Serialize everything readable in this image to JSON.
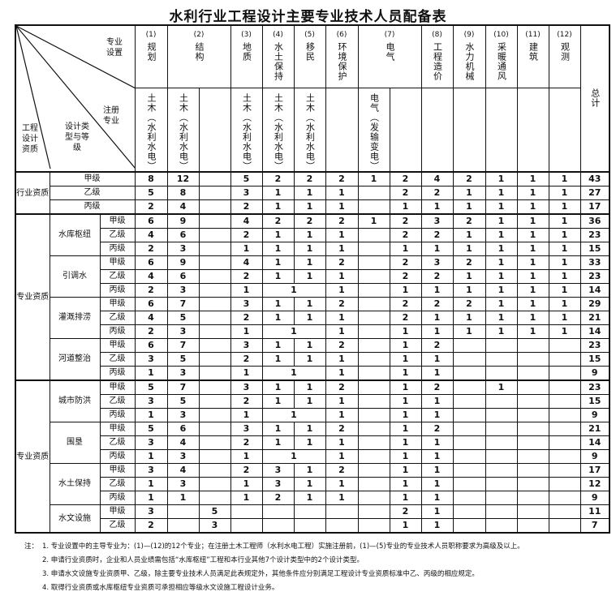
{
  "title": "水利行业工程设计主要专业技术人员配备表",
  "corner": {
    "specialty_setting": "专业设置",
    "registered_specialty": "注册专业",
    "design_type_grade": "设计类型与等级",
    "qualification": "工程设计资质"
  },
  "specialties": [
    {
      "num": "(1)",
      "name": "规划",
      "span": 1
    },
    {
      "num": "(2)",
      "name": "结构",
      "span": 2
    },
    {
      "num": "(3)",
      "name": "地质",
      "span": 1
    },
    {
      "num": "(4)",
      "name": "水土保持",
      "span": 1
    },
    {
      "num": "(5)",
      "name": "移民",
      "span": 1
    },
    {
      "num": "(6)",
      "name": "环境保护",
      "span": 1
    },
    {
      "num": "(7)",
      "name": "电气",
      "span": 2
    },
    {
      "num": "(8)",
      "name": "工程造价",
      "span": 1
    },
    {
      "num": "(9)",
      "name": "水力机械",
      "span": 1
    },
    {
      "num": "(10)",
      "name": "采暖通风",
      "span": 1
    },
    {
      "num": "(11)",
      "name": "建筑",
      "span": 1
    },
    {
      "num": "(12)",
      "name": "观测",
      "span": 1
    }
  ],
  "total_label": "总计",
  "registered": [
    "土木（水利水电）",
    "土木（水利水电）",
    "",
    "土木（水利水电）",
    "土木（水利水电）",
    "土木（水利水电）",
    "",
    "电气（发输变电）",
    "",
    "",
    "",
    "",
    "",
    ""
  ],
  "groups": [
    {
      "qualification": "行业资质",
      "types": [
        {
          "name": "",
          "rows": [
            {
              "grade": "甲级",
              "cells": [
                "8",
                "12",
                "",
                "5",
                "2",
                "2",
                "2",
                "1",
                "2",
                "4",
                "2",
                "1",
                "1",
                "1",
                "43"
              ]
            },
            {
              "grade": "乙级",
              "cells": [
                "5",
                "8",
                "",
                "3",
                "1",
                "1",
                "1",
                "",
                "2",
                "2",
                "1",
                "1",
                "1",
                "1",
                "27"
              ]
            },
            {
              "grade": "丙级",
              "cells": [
                "2",
                "4",
                "",
                "2",
                "1",
                "1",
                "1",
                "",
                "1",
                "1",
                "1",
                "1",
                "1",
                "1",
                "17"
              ]
            }
          ]
        }
      ]
    },
    {
      "qualification": "专业资质",
      "types": [
        {
          "name": "水库枢纽",
          "rows": [
            {
              "grade": "甲级",
              "cells": [
                "6",
                "9",
                "",
                "4",
                "2",
                "2",
                "2",
                "1",
                "2",
                "3",
                "2",
                "1",
                "1",
                "1",
                "36"
              ]
            },
            {
              "grade": "乙级",
              "cells": [
                "4",
                "6",
                "",
                "2",
                "1",
                "1",
                "1",
                "",
                "2",
                "2",
                "1",
                "1",
                "1",
                "1",
                "23"
              ]
            },
            {
              "grade": "丙级",
              "cells": [
                "2",
                "3",
                "",
                "1",
                "1",
                "1",
                "1",
                "",
                "1",
                "1",
                "1",
                "1",
                "1",
                "1",
                "15"
              ]
            }
          ]
        },
        {
          "name": "引调水",
          "rows": [
            {
              "grade": "甲级",
              "cells": [
                "6",
                "9",
                "",
                "4",
                "1",
                "1",
                "2",
                "",
                "2",
                "3",
                "2",
                "1",
                "1",
                "1",
                "33"
              ]
            },
            {
              "grade": "乙级",
              "cells": [
                "4",
                "6",
                "",
                "2",
                "1",
                "1",
                "1",
                "",
                "2",
                "2",
                "1",
                "1",
                "1",
                "1",
                "23"
              ]
            },
            {
              "grade": "丙级",
              "merged_soil_migration": true,
              "cells": [
                "2",
                "3",
                "",
                "1",
                "1",
                "",
                "1",
                "",
                "1",
                "1",
                "1",
                "1",
                "1",
                "1",
                "14"
              ]
            }
          ]
        },
        {
          "name": "灌溉排涝",
          "rows": [
            {
              "grade": "甲级",
              "cells": [
                "6",
                "7",
                "",
                "3",
                "1",
                "1",
                "2",
                "",
                "2",
                "2",
                "2",
                "1",
                "1",
                "1",
                "29"
              ]
            },
            {
              "grade": "乙级",
              "cells": [
                "4",
                "5",
                "",
                "2",
                "1",
                "1",
                "1",
                "",
                "2",
                "1",
                "1",
                "1",
                "1",
                "1",
                "21"
              ]
            },
            {
              "grade": "丙级",
              "merged_soil_migration": true,
              "cells": [
                "2",
                "3",
                "",
                "1",
                "1",
                "",
                "1",
                "",
                "1",
                "1",
                "1",
                "1",
                "1",
                "1",
                "14"
              ]
            }
          ]
        },
        {
          "name": "河道整治",
          "rows": [
            {
              "grade": "甲级",
              "cells": [
                "6",
                "7",
                "",
                "3",
                "1",
                "1",
                "2",
                "",
                "1",
                "2",
                "",
                "",
                "",
                "",
                "23"
              ]
            },
            {
              "grade": "乙级",
              "cells": [
                "3",
                "5",
                "",
                "2",
                "1",
                "1",
                "1",
                "",
                "1",
                "1",
                "",
                "",
                "",
                "",
                "15"
              ]
            },
            {
              "grade": "丙级",
              "merged_soil_migration": true,
              "cells": [
                "1",
                "3",
                "",
                "1",
                "1",
                "",
                "1",
                "",
                "1",
                "1",
                "",
                "",
                "",
                "",
                "9"
              ]
            }
          ]
        }
      ]
    },
    {
      "qualification": "专业资质",
      "types": [
        {
          "name": "城市防洪",
          "rows": [
            {
              "grade": "甲级",
              "cells": [
                "5",
                "7",
                "",
                "3",
                "1",
                "1",
                "2",
                "",
                "1",
                "2",
                "",
                "1",
                "",
                "",
                "23"
              ]
            },
            {
              "grade": "乙级",
              "cells": [
                "3",
                "5",
                "",
                "2",
                "1",
                "1",
                "1",
                "",
                "1",
                "1",
                "",
                "",
                "",
                "",
                "15"
              ]
            },
            {
              "grade": "丙级",
              "merged_soil_migration": true,
              "cells": [
                "1",
                "3",
                "",
                "1",
                "1",
                "",
                "1",
                "",
                "1",
                "1",
                "",
                "",
                "",
                "",
                "9"
              ]
            }
          ]
        },
        {
          "name": "围垦",
          "rows": [
            {
              "grade": "甲级",
              "cells": [
                "5",
                "6",
                "",
                "3",
                "1",
                "1",
                "2",
                "",
                "1",
                "2",
                "",
                "",
                "",
                "",
                "21"
              ]
            },
            {
              "grade": "乙级",
              "cells": [
                "3",
                "4",
                "",
                "2",
                "1",
                "1",
                "1",
                "",
                "1",
                "1",
                "",
                "",
                "",
                "",
                "14"
              ]
            },
            {
              "grade": "丙级",
              "merged_soil_migration": true,
              "cells": [
                "1",
                "3",
                "",
                "1",
                "1",
                "",
                "1",
                "",
                "1",
                "1",
                "",
                "",
                "",
                "",
                "9"
              ]
            }
          ]
        },
        {
          "name": "水土保持",
          "rows": [
            {
              "grade": "甲级",
              "cells": [
                "3",
                "4",
                "",
                "2",
                "3",
                "1",
                "2",
                "",
                "1",
                "1",
                "",
                "",
                "",
                "",
                "17"
              ]
            },
            {
              "grade": "乙级",
              "cells": [
                "1",
                "3",
                "",
                "1",
                "3",
                "1",
                "1",
                "",
                "1",
                "1",
                "",
                "",
                "",
                "",
                "12"
              ]
            },
            {
              "grade": "丙级",
              "cells": [
                "1",
                "1",
                "",
                "1",
                "2",
                "1",
                "1",
                "",
                "1",
                "1",
                "",
                "",
                "",
                "",
                "9"
              ]
            }
          ]
        },
        {
          "name": "水文设施",
          "rows": [
            {
              "grade": "甲级",
              "cells": [
                "3",
                "",
                "5",
                "",
                "",
                "",
                "",
                "",
                "2",
                "1",
                "",
                "",
                "",
                "",
                "11"
              ]
            },
            {
              "grade": "乙级",
              "cells": [
                "2",
                "",
                "3",
                "",
                "",
                "",
                "",
                "",
                "1",
                "1",
                "",
                "",
                "",
                "",
                "7"
              ]
            }
          ]
        }
      ]
    }
  ],
  "notes": {
    "lead": "注：",
    "items": [
      "1. 专业设置中的主导专业为：(1)—(12)的12个专业；在注册土木工程师（水利水电工程）实施注册前，(1)—(5)专业的专业技术人员职称要求为高级及以上。",
      "2. 申请行业资质时，企业和人员业绩需包括“水库枢纽”工程和本行业其他7个设计类型中的2个设计类型。",
      "3. 申请水文设施专业资质甲、乙级，除主要专业技术人员满足此表规定外，其他条件应分别满足工程设计专业资质标准中乙、丙级的相应规定。",
      "4. 取得行业资质或水库枢纽专业资质可承担相应等级水文设施工程设计业务。"
    ]
  }
}
